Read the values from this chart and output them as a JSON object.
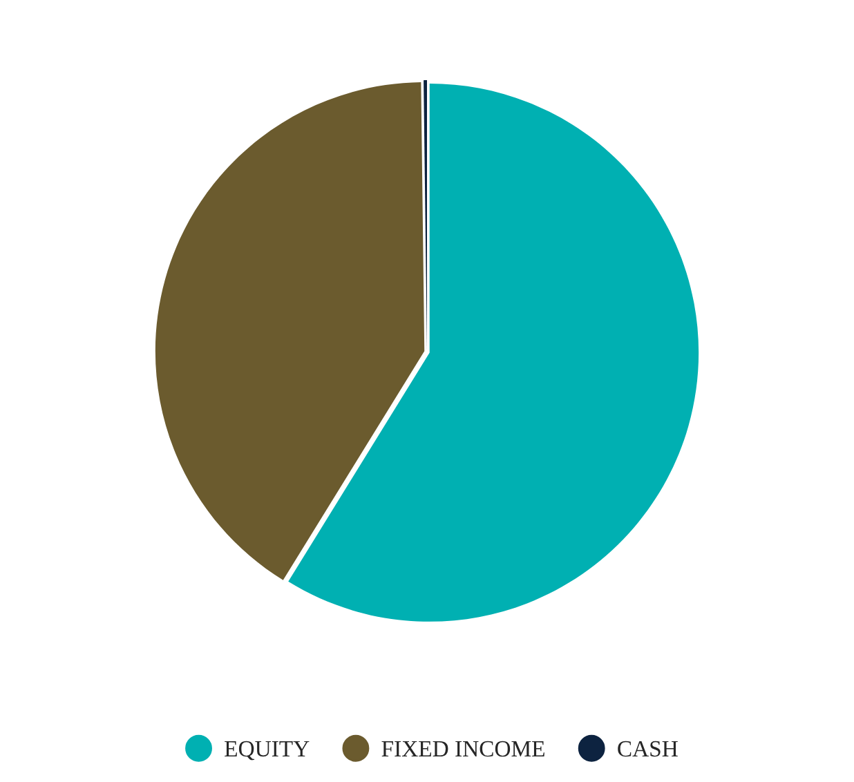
{
  "chart_data": {
    "type": "pie",
    "categories": [
      "EQUITY",
      "FIXED INCOME",
      "CASH"
    ],
    "values": [
      58.8,
      41.0,
      0.2
    ],
    "colors": [
      "#00b0b2",
      "#6b5b2e",
      "#0d2340"
    ],
    "legend": "bottom"
  }
}
